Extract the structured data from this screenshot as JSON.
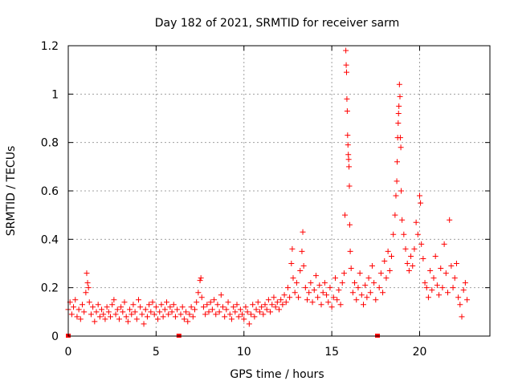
{
  "chart_data": {
    "type": "scatter",
    "title": "Day 182 of 2021, SRMTID for receiver sarm",
    "xlabel": "GPS time / hours",
    "ylabel": "SRMTID / TECUs",
    "xlim": [
      0,
      24
    ],
    "ylim": [
      0,
      1.2
    ],
    "x_ticks": [
      0,
      5,
      10,
      15,
      20
    ],
    "x_tick_labels": [
      "0",
      "5",
      "10",
      "15",
      "20"
    ],
    "y_ticks": [
      0,
      0.2,
      0.4,
      0.6,
      0.8,
      1.0,
      1.2
    ],
    "y_tick_labels": [
      "0",
      "0.2",
      "0.4",
      "0.6",
      "0.8",
      "1",
      "1.2"
    ],
    "grid": true,
    "marker": "plus",
    "color": "#ff0000",
    "data_gaps_hours": [
      0.0,
      6.3,
      17.6
    ],
    "series": [
      {
        "name": "SRMTID",
        "points": [
          [
            0.0,
            0.11
          ],
          [
            0.1,
            0.14
          ],
          [
            0.2,
            0.09
          ],
          [
            0.3,
            0.12
          ],
          [
            0.4,
            0.15
          ],
          [
            0.5,
            0.08
          ],
          [
            0.6,
            0.11
          ],
          [
            0.7,
            0.07
          ],
          [
            0.8,
            0.13
          ],
          [
            0.9,
            0.1
          ],
          [
            1.0,
            0.18
          ],
          [
            1.05,
            0.26
          ],
          [
            1.1,
            0.22
          ],
          [
            1.15,
            0.2
          ],
          [
            1.2,
            0.14
          ],
          [
            1.3,
            0.09
          ],
          [
            1.4,
            0.12
          ],
          [
            1.5,
            0.06
          ],
          [
            1.6,
            0.1
          ],
          [
            1.7,
            0.13
          ],
          [
            1.8,
            0.08
          ],
          [
            1.9,
            0.11
          ],
          [
            2.0,
            0.09
          ],
          [
            2.1,
            0.07
          ],
          [
            2.2,
            0.12
          ],
          [
            2.3,
            0.1
          ],
          [
            2.4,
            0.08
          ],
          [
            2.5,
            0.13
          ],
          [
            2.6,
            0.15
          ],
          [
            2.7,
            0.09
          ],
          [
            2.8,
            0.11
          ],
          [
            2.9,
            0.07
          ],
          [
            3.0,
            0.12
          ],
          [
            3.1,
            0.1
          ],
          [
            3.2,
            0.14
          ],
          [
            3.3,
            0.08
          ],
          [
            3.4,
            0.06
          ],
          [
            3.5,
            0.11
          ],
          [
            3.6,
            0.09
          ],
          [
            3.7,
            0.13
          ],
          [
            3.8,
            0.1
          ],
          [
            3.9,
            0.07
          ],
          [
            4.0,
            0.15
          ],
          [
            4.1,
            0.12
          ],
          [
            4.2,
            0.09
          ],
          [
            4.3,
            0.05
          ],
          [
            4.4,
            0.11
          ],
          [
            4.5,
            0.08
          ],
          [
            4.6,
            0.13
          ],
          [
            4.7,
            0.1
          ],
          [
            4.8,
            0.14
          ],
          [
            4.9,
            0.09
          ],
          [
            5.0,
            0.12
          ],
          [
            5.1,
            0.07
          ],
          [
            5.2,
            0.1
          ],
          [
            5.3,
            0.13
          ],
          [
            5.4,
            0.08
          ],
          [
            5.5,
            0.11
          ],
          [
            5.6,
            0.14
          ],
          [
            5.7,
            0.09
          ],
          [
            5.8,
            0.12
          ],
          [
            5.9,
            0.1
          ],
          [
            6.0,
            0.13
          ],
          [
            6.1,
            0.08
          ],
          [
            6.2,
            0.11
          ],
          [
            6.4,
            0.09
          ],
          [
            6.5,
            0.12
          ],
          [
            6.6,
            0.07
          ],
          [
            6.7,
            0.1
          ],
          [
            6.8,
            0.06
          ],
          [
            6.9,
            0.09
          ],
          [
            7.0,
            0.12
          ],
          [
            7.1,
            0.08
          ],
          [
            7.2,
            0.11
          ],
          [
            7.3,
            0.14
          ],
          [
            7.4,
            0.18
          ],
          [
            7.5,
            0.23
          ],
          [
            7.55,
            0.24
          ],
          [
            7.6,
            0.16
          ],
          [
            7.7,
            0.12
          ],
          [
            7.8,
            0.09
          ],
          [
            7.9,
            0.13
          ],
          [
            8.0,
            0.1
          ],
          [
            8.1,
            0.14
          ],
          [
            8.2,
            0.11
          ],
          [
            8.3,
            0.15
          ],
          [
            8.4,
            0.09
          ],
          [
            8.5,
            0.13
          ],
          [
            8.6,
            0.1
          ],
          [
            8.7,
            0.17
          ],
          [
            8.8,
            0.12
          ],
          [
            8.9,
            0.08
          ],
          [
            9.0,
            0.11
          ],
          [
            9.1,
            0.14
          ],
          [
            9.2,
            0.09
          ],
          [
            9.3,
            0.07
          ],
          [
            9.4,
            0.12
          ],
          [
            9.5,
            0.1
          ],
          [
            9.6,
            0.13
          ],
          [
            9.7,
            0.08
          ],
          [
            9.8,
            0.11
          ],
          [
            9.9,
            0.09
          ],
          [
            10.0,
            0.07
          ],
          [
            10.1,
            0.12
          ],
          [
            10.2,
            0.1
          ],
          [
            10.3,
            0.05
          ],
          [
            10.4,
            0.09
          ],
          [
            10.5,
            0.13
          ],
          [
            10.6,
            0.08
          ],
          [
            10.7,
            0.11
          ],
          [
            10.8,
            0.14
          ],
          [
            10.9,
            0.1
          ],
          [
            11.0,
            0.12
          ],
          [
            11.1,
            0.09
          ],
          [
            11.2,
            0.13
          ],
          [
            11.3,
            0.11
          ],
          [
            11.4,
            0.15
          ],
          [
            11.5,
            0.1
          ],
          [
            11.6,
            0.13
          ],
          [
            11.7,
            0.16
          ],
          [
            11.8,
            0.12
          ],
          [
            11.9,
            0.14
          ],
          [
            12.0,
            0.11
          ],
          [
            12.1,
            0.15
          ],
          [
            12.2,
            0.13
          ],
          [
            12.3,
            0.17
          ],
          [
            12.4,
            0.14
          ],
          [
            12.5,
            0.2
          ],
          [
            12.6,
            0.16
          ],
          [
            12.7,
            0.3
          ],
          [
            12.75,
            0.36
          ],
          [
            12.8,
            0.24
          ],
          [
            12.9,
            0.18
          ],
          [
            13.0,
            0.22
          ],
          [
            13.1,
            0.16
          ],
          [
            13.2,
            0.27
          ],
          [
            13.3,
            0.35
          ],
          [
            13.35,
            0.43
          ],
          [
            13.4,
            0.29
          ],
          [
            13.5,
            0.2
          ],
          [
            13.6,
            0.15
          ],
          [
            13.7,
            0.18
          ],
          [
            13.8,
            0.22
          ],
          [
            13.9,
            0.14
          ],
          [
            14.0,
            0.19
          ],
          [
            14.1,
            0.25
          ],
          [
            14.2,
            0.16
          ],
          [
            14.3,
            0.21
          ],
          [
            14.4,
            0.13
          ],
          [
            14.5,
            0.18
          ],
          [
            14.6,
            0.22
          ],
          [
            14.7,
            0.17
          ],
          [
            14.8,
            0.14
          ],
          [
            14.9,
            0.2
          ],
          [
            15.0,
            0.12
          ],
          [
            15.1,
            0.16
          ],
          [
            15.2,
            0.24
          ],
          [
            15.3,
            0.15
          ],
          [
            15.4,
            0.19
          ],
          [
            15.5,
            0.13
          ],
          [
            15.6,
            0.22
          ],
          [
            15.7,
            0.26
          ],
          [
            15.75,
            0.5
          ],
          [
            15.8,
            1.18
          ],
          [
            15.82,
            1.12
          ],
          [
            15.84,
            1.09
          ],
          [
            15.86,
            0.98
          ],
          [
            15.88,
            0.93
          ],
          [
            15.9,
            0.83
          ],
          [
            15.92,
            0.79
          ],
          [
            15.94,
            0.75
          ],
          [
            15.96,
            0.73
          ],
          [
            15.98,
            0.7
          ],
          [
            16.0,
            0.62
          ],
          [
            16.02,
            0.46
          ],
          [
            16.05,
            0.35
          ],
          [
            16.1,
            0.28
          ],
          [
            16.2,
            0.18
          ],
          [
            16.3,
            0.22
          ],
          [
            16.4,
            0.15
          ],
          [
            16.5,
            0.2
          ],
          [
            16.6,
            0.26
          ],
          [
            16.7,
            0.17
          ],
          [
            16.8,
            0.13
          ],
          [
            16.9,
            0.21
          ],
          [
            17.0,
            0.16
          ],
          [
            17.1,
            0.24
          ],
          [
            17.2,
            0.18
          ],
          [
            17.3,
            0.29
          ],
          [
            17.4,
            0.22
          ],
          [
            17.5,
            0.15
          ],
          [
            17.7,
            0.2
          ],
          [
            17.8,
            0.26
          ],
          [
            17.9,
            0.18
          ],
          [
            18.0,
            0.31
          ],
          [
            18.1,
            0.24
          ],
          [
            18.2,
            0.35
          ],
          [
            18.3,
            0.27
          ],
          [
            18.4,
            0.33
          ],
          [
            18.5,
            0.42
          ],
          [
            18.6,
            0.5
          ],
          [
            18.65,
            0.58
          ],
          [
            18.7,
            0.64
          ],
          [
            18.72,
            0.72
          ],
          [
            18.75,
            0.82
          ],
          [
            18.78,
            0.88
          ],
          [
            18.8,
            0.92
          ],
          [
            18.82,
            0.95
          ],
          [
            18.85,
            1.04
          ],
          [
            18.88,
            0.99
          ],
          [
            18.9,
            0.82
          ],
          [
            18.93,
            0.78
          ],
          [
            18.95,
            0.6
          ],
          [
            19.0,
            0.48
          ],
          [
            19.1,
            0.42
          ],
          [
            19.2,
            0.36
          ],
          [
            19.3,
            0.3
          ],
          [
            19.4,
            0.27
          ],
          [
            19.5,
            0.33
          ],
          [
            19.6,
            0.29
          ],
          [
            19.7,
            0.36
          ],
          [
            19.8,
            0.47
          ],
          [
            19.9,
            0.42
          ],
          [
            20.0,
            0.58
          ],
          [
            20.05,
            0.55
          ],
          [
            20.1,
            0.38
          ],
          [
            20.2,
            0.32
          ],
          [
            20.3,
            0.22
          ],
          [
            20.4,
            0.2
          ],
          [
            20.5,
            0.16
          ],
          [
            20.6,
            0.27
          ],
          [
            20.7,
            0.19
          ],
          [
            20.8,
            0.24
          ],
          [
            20.9,
            0.33
          ],
          [
            21.0,
            0.21
          ],
          [
            21.1,
            0.17
          ],
          [
            21.2,
            0.28
          ],
          [
            21.3,
            0.2
          ],
          [
            21.4,
            0.38
          ],
          [
            21.5,
            0.26
          ],
          [
            21.6,
            0.18
          ],
          [
            21.7,
            0.48
          ],
          [
            21.8,
            0.29
          ],
          [
            21.9,
            0.2
          ],
          [
            22.0,
            0.24
          ],
          [
            22.1,
            0.3
          ],
          [
            22.2,
            0.16
          ],
          [
            22.3,
            0.13
          ],
          [
            22.4,
            0.08
          ],
          [
            22.5,
            0.19
          ],
          [
            22.6,
            0.22
          ],
          [
            22.7,
            0.15
          ]
        ]
      }
    ]
  }
}
